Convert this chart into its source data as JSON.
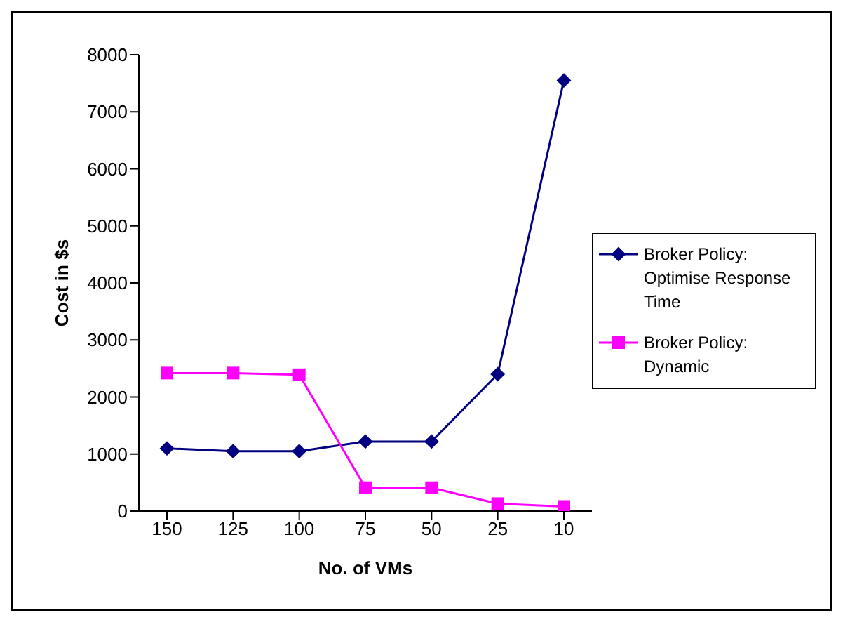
{
  "chart_data": {
    "type": "line",
    "xlabel": "No. of VMs",
    "ylabel": "Cost in $s",
    "categories": [
      "150",
      "125",
      "100",
      "75",
      "50",
      "25",
      "10"
    ],
    "series": [
      {
        "name": "Broker Policy: Optimise Response Time",
        "color": "#000080",
        "marker": "diamond",
        "values": [
          1100,
          1050,
          1050,
          1220,
          1220,
          2400,
          7550
        ]
      },
      {
        "name": "Broker Policy: Dynamic",
        "color": "#ff00ff",
        "marker": "square",
        "values": [
          2420,
          2420,
          2390,
          410,
          410,
          130,
          80
        ]
      }
    ],
    "ylim": [
      0,
      8000
    ],
    "yticks": [
      0,
      1000,
      2000,
      3000,
      4000,
      5000,
      6000,
      7000,
      8000
    ],
    "grid": false,
    "legend": "right",
    "line_style": "solid"
  }
}
